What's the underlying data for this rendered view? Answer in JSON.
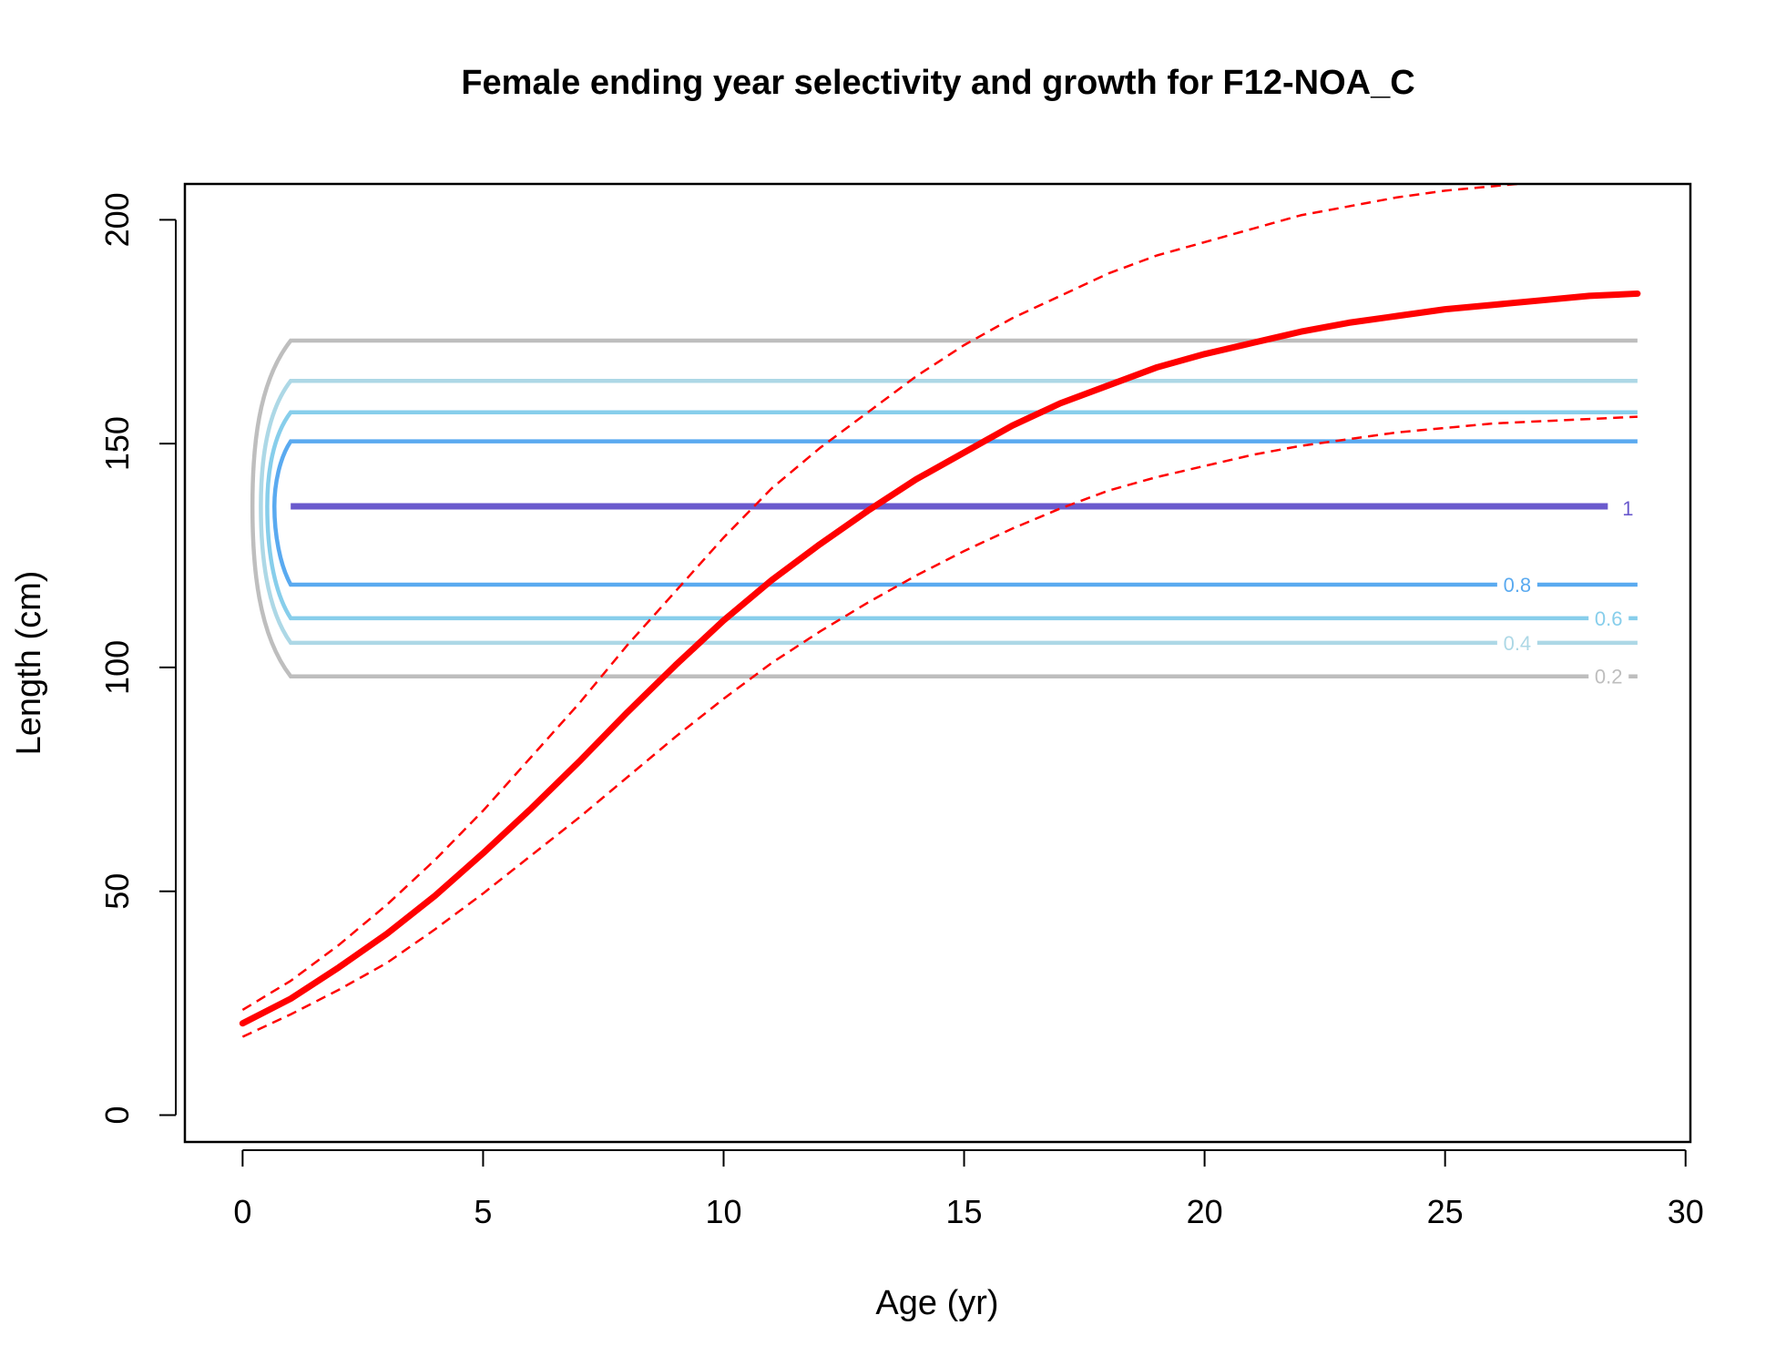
{
  "chart_data": {
    "type": "line",
    "title": "Female ending year selectivity and growth for F12-NOA_C",
    "xlabel": "Age (yr)",
    "ylabel": "Length (cm)",
    "xlim": [
      -1.2,
      30.1
    ],
    "ylim": [
      -6,
      208
    ],
    "x_ticks": [
      0,
      5,
      10,
      15,
      20,
      25,
      30
    ],
    "y_ticks": [
      0,
      50,
      100,
      150,
      200
    ],
    "x_tick_labels": [
      "0",
      "5",
      "10",
      "15",
      "20",
      "25",
      "30"
    ],
    "y_tick_labels": [
      "0",
      "50",
      "100",
      "150",
      "200"
    ],
    "grid": false,
    "series": [
      {
        "style": "solid",
        "color": "#ff0000",
        "x": [
          0,
          1,
          2,
          3,
          4,
          5,
          6,
          7,
          8,
          9,
          10,
          11,
          12,
          13,
          14,
          15,
          16,
          17,
          18,
          19,
          20,
          21,
          22,
          23,
          24,
          25,
          26,
          27,
          28,
          29
        ],
        "values": [
          20.5,
          26,
          33,
          40.5,
          49,
          58.5,
          68.5,
          79,
          90,
          100.5,
          110.5,
          119.5,
          127.5,
          135,
          142,
          148,
          154,
          159,
          163,
          167,
          170,
          172.5,
          175,
          177,
          178.5,
          180,
          181,
          182,
          183,
          183.5
        ]
      },
      {
        "style": "dashed",
        "color": "#ff0000",
        "x": [
          0,
          1,
          2,
          3,
          4,
          5,
          6,
          7,
          8,
          9,
          10,
          11,
          12,
          13,
          14,
          15,
          16,
          17,
          18,
          19,
          20,
          21,
          22,
          23,
          24,
          25,
          26,
          27,
          28,
          29
        ],
        "values": [
          23.5,
          30,
          38,
          47,
          57,
          68,
          80,
          92,
          105,
          117,
          129,
          140,
          149,
          157,
          165,
          172,
          178,
          183,
          188,
          192,
          195,
          198,
          201,
          203,
          205,
          206.5,
          207.5,
          208.5,
          209,
          210
        ]
      },
      {
        "style": "dashed",
        "color": "#ff0000",
        "x": [
          0,
          1,
          2,
          3,
          4,
          5,
          6,
          7,
          8,
          9,
          10,
          11,
          12,
          13,
          14,
          15,
          16,
          17,
          18,
          19,
          20,
          21,
          22,
          23,
          24,
          25,
          26,
          27,
          28,
          29
        ],
        "values": [
          17.5,
          22.5,
          28,
          34,
          41.5,
          49.5,
          58,
          66.5,
          75.5,
          84.5,
          93,
          101,
          108,
          114.5,
          120.5,
          126,
          131,
          135.5,
          139.5,
          142.5,
          145,
          147.5,
          149.5,
          151,
          152.5,
          153.5,
          154.5,
          155,
          155.5,
          156
        ]
      }
    ],
    "contours": [
      {
        "level": "1",
        "color": "#6a5acd",
        "y_values": [
          136,
          136
        ],
        "x_start": 1,
        "x_end": 29
      },
      {
        "level": "0.8",
        "color": "#5aaaf0",
        "y_values": [
          118.5,
          150.5
        ],
        "x_start": 1,
        "x_end": 29
      },
      {
        "level": "0.6",
        "color": "#87ceeb",
        "y_values": [
          111,
          157
        ],
        "x_start": 1,
        "x_end": 29
      },
      {
        "level": "0.4",
        "color": "#add8e6",
        "y_values": [
          105.5,
          164
        ],
        "x_start": 1,
        "x_end": 29
      },
      {
        "level": "0.2",
        "color": "#bebebe",
        "y_values": [
          98,
          173
        ],
        "x_start": 1,
        "x_end": 29
      }
    ]
  }
}
